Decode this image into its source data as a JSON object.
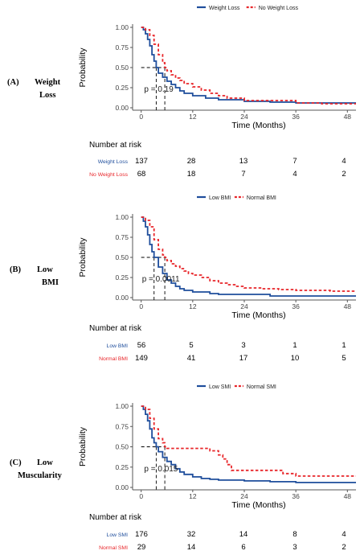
{
  "colors": {
    "weight_loss": "#1f4e9c",
    "no_weight_loss": "#e8262a",
    "axis": "#555555"
  },
  "panels": [
    {
      "id": "A",
      "label_lines": [
        "(A)",
        "Weight",
        "Loss"
      ],
      "legend": [
        "Weight Loss",
        "No Weight Loss"
      ],
      "risk_title": "Number at risk",
      "risk_rows": [
        {
          "name": "Weight Loss",
          "values": [
            "137",
            "28",
            "13",
            "7",
            "4"
          ]
        },
        {
          "name": "No Weight Loss",
          "values": [
            "68",
            "18",
            "7",
            "4",
            "2"
          ]
        }
      ],
      "pvalue_text": "p = 0.19",
      "median": [
        3.5,
        5.5
      ]
    },
    {
      "id": "B",
      "label_lines": [
        "(B)",
        "Low",
        "BMI"
      ],
      "legend": [
        "Low BMI",
        "Normal BMI"
      ],
      "risk_title": "Number at risk",
      "risk_rows": [
        {
          "name": "Low BMI",
          "values": [
            "56",
            "5",
            "3",
            "1",
            "1"
          ]
        },
        {
          "name": "Normal BMI",
          "values": [
            "149",
            "41",
            "17",
            "10",
            "5"
          ]
        }
      ],
      "pvalue_text": "p = 0.0011",
      "median": [
        3,
        5.5
      ]
    },
    {
      "id": "C",
      "label_lines": [
        "(C)",
        "Low",
        "Muscularity"
      ],
      "legend": [
        "Low SMI",
        "Normal SMI"
      ],
      "risk_title": "Number at risk",
      "risk_rows": [
        {
          "name": "Low SMI",
          "values": [
            "176",
            "32",
            "14",
            "8",
            "4"
          ]
        },
        {
          "name": "Normal SMI",
          "values": [
            "29",
            "14",
            "6",
            "3",
            "2"
          ]
        }
      ],
      "pvalue_text": "p = 0.015",
      "median": [
        3.5,
        5.5
      ]
    }
  ],
  "chart_data": [
    {
      "type": "line",
      "title": "",
      "xlabel": "Time (Months)",
      "ylabel": "Probability",
      "xlim": [
        -2,
        50
      ],
      "ylim": [
        0,
        1
      ],
      "x_ticks": [
        0,
        12,
        24,
        36,
        48
      ],
      "y_ticks": [
        "0.00",
        "0.25",
        "0.50",
        "0.75",
        "1.00"
      ],
      "legend_position": "top",
      "series": [
        {
          "name": "Weight Loss",
          "style": "solid",
          "points": [
            [
              0,
              1
            ],
            [
              0.5,
              0.97
            ],
            [
              1,
              0.92
            ],
            [
              1.5,
              0.85
            ],
            [
              2,
              0.77
            ],
            [
              2.5,
              0.66
            ],
            [
              3,
              0.58
            ],
            [
              3.5,
              0.5
            ],
            [
              4,
              0.43
            ],
            [
              5,
              0.38
            ],
            [
              6,
              0.33
            ],
            [
              7,
              0.29
            ],
            [
              8,
              0.25
            ],
            [
              9,
              0.21
            ],
            [
              10,
              0.18
            ],
            [
              12,
              0.15
            ],
            [
              15,
              0.12
            ],
            [
              18,
              0.1
            ],
            [
              24,
              0.08
            ],
            [
              30,
              0.07
            ],
            [
              36,
              0.06
            ],
            [
              42,
              0.06
            ],
            [
              48,
              0.06
            ],
            [
              50,
              0.06
            ]
          ]
        },
        {
          "name": "No Weight Loss",
          "style": "dashed",
          "points": [
            [
              0,
              1
            ],
            [
              1,
              0.97
            ],
            [
              2,
              0.9
            ],
            [
              3,
              0.79
            ],
            [
              4,
              0.66
            ],
            [
              5,
              0.56
            ],
            [
              5.5,
              0.5
            ],
            [
              6,
              0.46
            ],
            [
              7,
              0.41
            ],
            [
              8,
              0.37
            ],
            [
              9,
              0.34
            ],
            [
              10,
              0.3
            ],
            [
              12,
              0.26
            ],
            [
              14,
              0.22
            ],
            [
              16,
              0.18
            ],
            [
              18,
              0.15
            ],
            [
              20,
              0.12
            ],
            [
              24,
              0.09
            ],
            [
              30,
              0.09
            ],
            [
              36,
              0.06
            ],
            [
              42,
              0.05
            ],
            [
              48,
              0.05
            ],
            [
              50,
              0.05
            ]
          ]
        }
      ]
    },
    {
      "type": "line",
      "title": "",
      "xlabel": "Time (Months)",
      "ylabel": "Probability",
      "xlim": [
        -2,
        50
      ],
      "ylim": [
        0,
        1
      ],
      "x_ticks": [
        0,
        12,
        24,
        36,
        48
      ],
      "y_ticks": [
        "0.00",
        "0.25",
        "0.50",
        "0.75",
        "1.00"
      ],
      "legend_position": "top",
      "series": [
        {
          "name": "Low BMI",
          "style": "solid",
          "points": [
            [
              0,
              1
            ],
            [
              0.5,
              0.95
            ],
            [
              1,
              0.88
            ],
            [
              1.5,
              0.78
            ],
            [
              2,
              0.66
            ],
            [
              2.5,
              0.57
            ],
            [
              3,
              0.5
            ],
            [
              4,
              0.38
            ],
            [
              5,
              0.3
            ],
            [
              6,
              0.22
            ],
            [
              7,
              0.18
            ],
            [
              8,
              0.14
            ],
            [
              9,
              0.11
            ],
            [
              10,
              0.09
            ],
            [
              12,
              0.07
            ],
            [
              16,
              0.05
            ],
            [
              18,
              0.04
            ],
            [
              24,
              0.04
            ],
            [
              30,
              0.02
            ],
            [
              36,
              0.02
            ],
            [
              42,
              0.02
            ],
            [
              48,
              0.02
            ],
            [
              50,
              0.02
            ]
          ]
        },
        {
          "name": "Normal BMI",
          "style": "dashed",
          "points": [
            [
              0,
              1
            ],
            [
              1,
              0.96
            ],
            [
              2,
              0.88
            ],
            [
              3,
              0.72
            ],
            [
              4,
              0.6
            ],
            [
              5,
              0.53
            ],
            [
              5.5,
              0.5
            ],
            [
              6,
              0.46
            ],
            [
              7,
              0.42
            ],
            [
              8,
              0.39
            ],
            [
              9,
              0.36
            ],
            [
              10,
              0.33
            ],
            [
              11,
              0.3
            ],
            [
              12,
              0.28
            ],
            [
              14,
              0.25
            ],
            [
              16,
              0.21
            ],
            [
              18,
              0.18
            ],
            [
              20,
              0.16
            ],
            [
              22,
              0.14
            ],
            [
              24,
              0.12
            ],
            [
              28,
              0.11
            ],
            [
              32,
              0.1
            ],
            [
              36,
              0.09
            ],
            [
              40,
              0.09
            ],
            [
              44,
              0.08
            ],
            [
              48,
              0.08
            ],
            [
              50,
              0.08
            ]
          ]
        }
      ]
    },
    {
      "type": "line",
      "title": "",
      "xlabel": "Time (Months)",
      "ylabel": "Probability",
      "xlim": [
        -2,
        50
      ],
      "ylim": [
        0,
        1
      ],
      "x_ticks": [
        0,
        12,
        24,
        36,
        48
      ],
      "y_ticks": [
        "0.00",
        "0.25",
        "0.50",
        "0.75",
        "1.00"
      ],
      "legend_position": "top",
      "series": [
        {
          "name": "Low SMI",
          "style": "solid",
          "points": [
            [
              0,
              1
            ],
            [
              0.5,
              0.96
            ],
            [
              1,
              0.9
            ],
            [
              1.5,
              0.82
            ],
            [
              2,
              0.72
            ],
            [
              2.5,
              0.61
            ],
            [
              3,
              0.55
            ],
            [
              3.5,
              0.5
            ],
            [
              4,
              0.44
            ],
            [
              5,
              0.37
            ],
            [
              6,
              0.32
            ],
            [
              7,
              0.28
            ],
            [
              8,
              0.23
            ],
            [
              9,
              0.19
            ],
            [
              10,
              0.16
            ],
            [
              12,
              0.13
            ],
            [
              14,
              0.11
            ],
            [
              16,
              0.1
            ],
            [
              18,
              0.09
            ],
            [
              24,
              0.08
            ],
            [
              30,
              0.07
            ],
            [
              36,
              0.06
            ],
            [
              42,
              0.06
            ],
            [
              48,
              0.06
            ],
            [
              50,
              0.06
            ]
          ]
        },
        {
          "name": "Normal SMI",
          "style": "dashed",
          "points": [
            [
              0,
              1
            ],
            [
              1,
              0.96
            ],
            [
              2,
              0.85
            ],
            [
              3,
              0.72
            ],
            [
              4,
              0.6
            ],
            [
              5,
              0.55
            ],
            [
              5.5,
              0.5
            ],
            [
              6,
              0.48
            ],
            [
              14,
              0.48
            ],
            [
              16,
              0.45
            ],
            [
              18,
              0.4
            ],
            [
              19,
              0.35
            ],
            [
              20,
              0.28
            ],
            [
              21,
              0.21
            ],
            [
              30,
              0.21
            ],
            [
              33,
              0.17
            ],
            [
              36,
              0.14
            ],
            [
              48,
              0.14
            ],
            [
              50,
              0.14
            ]
          ]
        }
      ]
    }
  ]
}
